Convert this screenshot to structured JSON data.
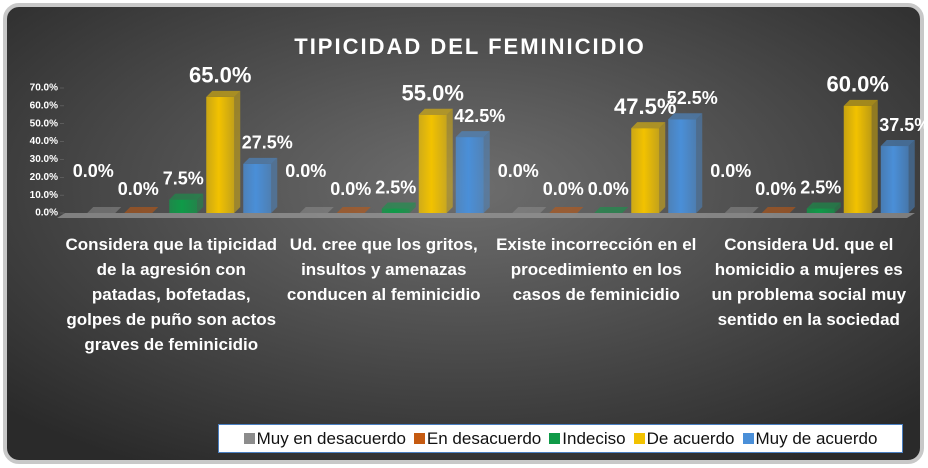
{
  "chart_data": {
    "type": "bar3d",
    "title": "TIPICIDAD DEL FEMINICIDIO",
    "categories": [
      "Considera que la tipicidad de la agresión con patadas, bofetadas, golpes de puño son actos graves de feminicidio",
      "Ud. cree que los gritos, insultos y amenazas conducen al feminicidio",
      "Existe incorrección en el procedimiento en los casos de feminicidio",
      "Considera Ud. que el homicidio a mujeres es un problema social muy sentido en la sociedad"
    ],
    "series": [
      {
        "name": "Muy en desacuerdo",
        "color": "#8c8c8c",
        "values": [
          0,
          0,
          0,
          0
        ],
        "value_labels": [
          "0.0%",
          "0.0%",
          "0.0%",
          "0.0%"
        ]
      },
      {
        "name": "En desacuerdo",
        "color": "#c55a11",
        "values": [
          0,
          0,
          0,
          0
        ],
        "value_labels": [
          "0.0%",
          "0.0%",
          "0.0%",
          "0.0%"
        ]
      },
      {
        "name": "Indeciso",
        "color": "#0f9a48",
        "values": [
          7.5,
          2.5,
          0,
          2.5
        ],
        "value_labels": [
          "7.5%",
          "2.5%",
          "0.0%",
          "2.5%"
        ]
      },
      {
        "name": "De acuerdo",
        "color": "#f2c200",
        "values": [
          65,
          55,
          47.5,
          60
        ],
        "value_labels": [
          "65.0%",
          "55.0%",
          "47.5%",
          "60.0%"
        ]
      },
      {
        "name": "Muy de acuerdo",
        "color": "#4a8fd8",
        "values": [
          27.5,
          42.5,
          52.5,
          37.5
        ],
        "value_labels": [
          "27.5%",
          "42.5%",
          "52.5%",
          "37.5%"
        ]
      }
    ],
    "ylim": [
      0,
      70
    ],
    "yticks": [
      {
        "value": 0,
        "label": "0.0%"
      },
      {
        "value": 10,
        "label": "10.0%"
      },
      {
        "value": 20,
        "label": "20.0%"
      },
      {
        "value": 30,
        "label": "30.0%"
      },
      {
        "value": 40,
        "label": "40.0%"
      },
      {
        "value": 50,
        "label": "50.0%"
      },
      {
        "value": 60,
        "label": "60.0%"
      },
      {
        "value": 70,
        "label": "70.0%"
      }
    ],
    "legend": "bottom"
  }
}
